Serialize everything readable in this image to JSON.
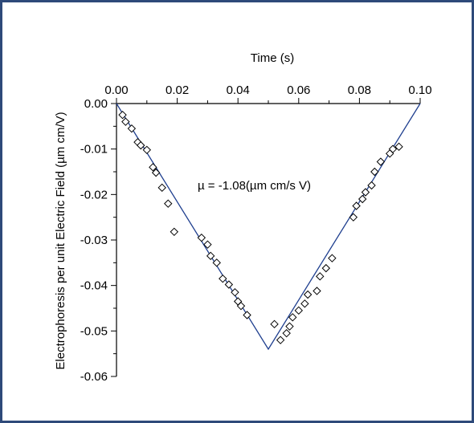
{
  "chart_data": {
    "type": "scatter",
    "title": "",
    "xlabel": "Time (s)",
    "ylabel": "Electrophoresis per unit Electric Field (µm cm/V)",
    "xlim": [
      0.0,
      0.1
    ],
    "ylim": [
      -0.06,
      0.0
    ],
    "x_axis_position": "top",
    "grid": false,
    "x_ticks": [
      0.0,
      0.02,
      0.04,
      0.06,
      0.08,
      0.1
    ],
    "x_tick_labels": [
      "0.00",
      "0.02",
      "0.04",
      "0.06",
      "0.08",
      "0.10"
    ],
    "y_ticks": [
      0.0,
      -0.01,
      -0.02,
      -0.03,
      -0.04,
      -0.05,
      -0.06
    ],
    "y_tick_labels": [
      "0.00",
      "-0.01",
      "-0.02",
      "-0.03",
      "-0.04",
      "-0.05",
      "-0.06"
    ],
    "annotation": "µ = -1.08(µm cm/s V)",
    "series": [
      {
        "marker": "diamond",
        "color": "#000000",
        "x": [
          0.002,
          0.003,
          0.005,
          0.007,
          0.008,
          0.01,
          0.012,
          0.013,
          0.015,
          0.017,
          0.019,
          0.028,
          0.03,
          0.031,
          0.033,
          0.035,
          0.037,
          0.039,
          0.04,
          0.041,
          0.043,
          0.052,
          0.054,
          0.056,
          0.057,
          0.058,
          0.06,
          0.062,
          0.063,
          0.066,
          0.067,
          0.069,
          0.071,
          0.078,
          0.079,
          0.081,
          0.082,
          0.084,
          0.085,
          0.087,
          0.09,
          0.091,
          0.093
        ],
        "y": [
          -0.0025,
          -0.004,
          -0.0055,
          -0.0085,
          -0.0092,
          -0.0102,
          -0.014,
          -0.0152,
          -0.0185,
          -0.022,
          -0.0282,
          -0.0295,
          -0.031,
          -0.0335,
          -0.035,
          -0.0385,
          -0.0398,
          -0.0415,
          -0.0435,
          -0.0445,
          -0.0465,
          -0.0485,
          -0.052,
          -0.0505,
          -0.049,
          -0.047,
          -0.0455,
          -0.044,
          -0.042,
          -0.0412,
          -0.038,
          -0.0362,
          -0.034,
          -0.025,
          -0.0225,
          -0.021,
          -0.0195,
          -0.018,
          -0.015,
          -0.0128,
          -0.011,
          -0.01,
          -0.0095
        ]
      },
      {
        "type": "line",
        "color": "#1f3f8f",
        "x": [
          0.0,
          0.05,
          0.1
        ],
        "y": [
          0.0,
          -0.054,
          0.0
        ]
      }
    ]
  }
}
